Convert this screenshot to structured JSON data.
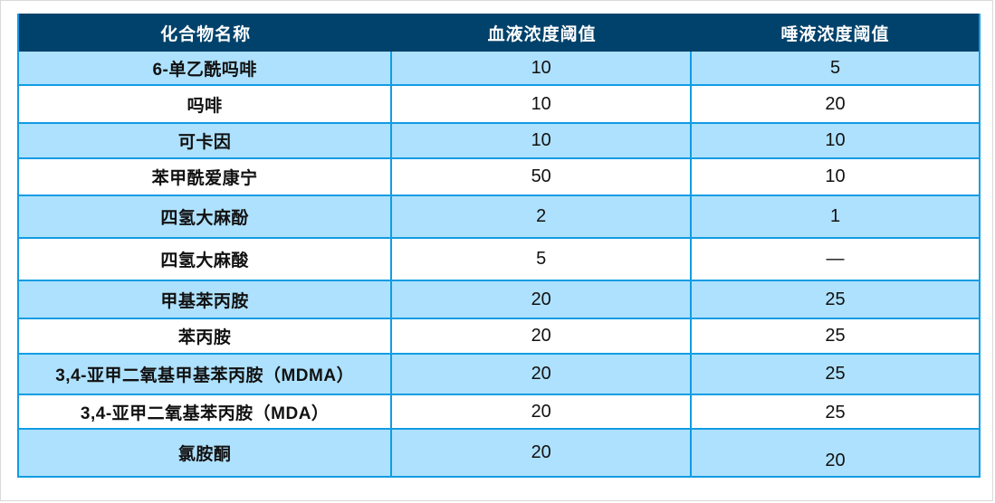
{
  "table": {
    "columns": [
      {
        "label": "化合物名称"
      },
      {
        "label": "血液浓度阈值"
      },
      {
        "label": "唾液浓度阈值"
      }
    ],
    "rows": [
      {
        "name": "6-单乙酰吗啡",
        "blood": "10",
        "saliva": "5"
      },
      {
        "name": "吗啡",
        "blood": "10",
        "saliva": "20"
      },
      {
        "name": "可卡因",
        "blood": "10",
        "saliva": "10"
      },
      {
        "name": "苯甲酰爱康宁",
        "blood": "50",
        "saliva": "10"
      },
      {
        "name": "四氢大麻酚",
        "blood": "2",
        "saliva": "1"
      },
      {
        "name": "四氢大麻酸",
        "blood": "5",
        "saliva": "—"
      },
      {
        "name": "甲基苯丙胺",
        "blood": "20",
        "saliva": "25"
      },
      {
        "name": "苯丙胺",
        "blood": "20",
        "saliva": "25"
      },
      {
        "name": "3,4-亚甲二氧基甲基苯丙胺（MDMA）",
        "blood": "20",
        "saliva": "25"
      },
      {
        "name": "3,4-亚甲二氧基苯丙胺（MDA）",
        "blood": "20",
        "saliva": "25"
      },
      {
        "name": "氯胺酮",
        "blood": "20",
        "saliva": "20"
      }
    ],
    "colors": {
      "header_bg": "#00426B",
      "header_text": "#FFFFFF",
      "row_alt_bg": "#AEE1FD",
      "row_bg": "#FFFFFF",
      "grid_line": "#119CE3",
      "body_text": "#111111"
    }
  }
}
